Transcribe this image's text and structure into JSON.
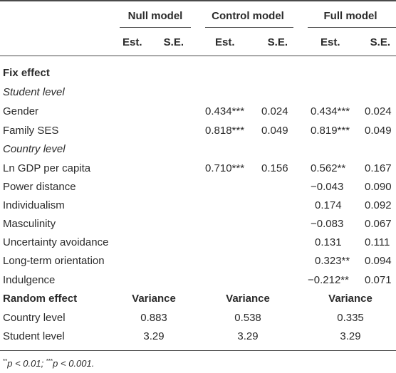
{
  "columns": {
    "groups": [
      "Null model",
      "Control model",
      "Full model"
    ],
    "sub": [
      "Est.",
      "S.E.",
      "Est.",
      "S.E.",
      "Est.",
      "S.E."
    ]
  },
  "rows": [
    {
      "label": "Fix effect",
      "style": "section",
      "cells": [
        "",
        "",
        "",
        "",
        "",
        ""
      ]
    },
    {
      "label": "Student level",
      "style": "italic",
      "cells": [
        "",
        "",
        "",
        "",
        "",
        ""
      ]
    },
    {
      "label": "Gender",
      "style": "normal",
      "cells": [
        "",
        "",
        "0.434***",
        "0.024",
        "0.434***",
        "0.024"
      ]
    },
    {
      "label": "Family SES",
      "style": "normal",
      "cells": [
        "",
        "",
        "0.818***",
        "0.049",
        "0.819***",
        "0.049"
      ]
    },
    {
      "label": "Country level",
      "style": "italic",
      "cells": [
        "",
        "",
        "",
        "",
        "",
        ""
      ]
    },
    {
      "label": "Ln GDP per capita",
      "style": "normal",
      "cells": [
        "",
        "",
        "0.710***",
        "0.156",
        "0.562**",
        "0.167"
      ]
    },
    {
      "label": "Power distance",
      "style": "normal",
      "cells": [
        "",
        "",
        "",
        "",
        "−0.043",
        "0.090"
      ]
    },
    {
      "label": "Individualism",
      "style": "normal",
      "cells": [
        "",
        "",
        "",
        "",
        "0.174",
        "0.092"
      ]
    },
    {
      "label": "Masculinity",
      "style": "normal",
      "cells": [
        "",
        "",
        "",
        "",
        "−0.083",
        "0.067"
      ]
    },
    {
      "label": "Uncertainty avoidance",
      "style": "normal",
      "cells": [
        "",
        "",
        "",
        "",
        "0.131",
        "0.111"
      ]
    },
    {
      "label": "Long-term orientation",
      "style": "normal",
      "cells": [
        "",
        "",
        "",
        "",
        "0.323**",
        "0.094"
      ]
    },
    {
      "label": "Indulgence",
      "style": "normal",
      "cells": [
        "",
        "",
        "",
        "",
        "−0.212**",
        "0.071"
      ]
    }
  ],
  "random": {
    "label": "Random effect",
    "header": [
      "Variance",
      "Variance",
      "Variance"
    ],
    "rows": [
      {
        "label": "Country level",
        "values": [
          "0.883",
          "0.538",
          "0.335"
        ]
      },
      {
        "label": "Student level",
        "values": [
          "3.29",
          "3.29",
          "3.29"
        ]
      }
    ]
  },
  "footnote": {
    "p1_marker": "**",
    "p1_text": "p < 0.01; ",
    "p2_marker": "***",
    "p2_text": "p < 0.001."
  }
}
